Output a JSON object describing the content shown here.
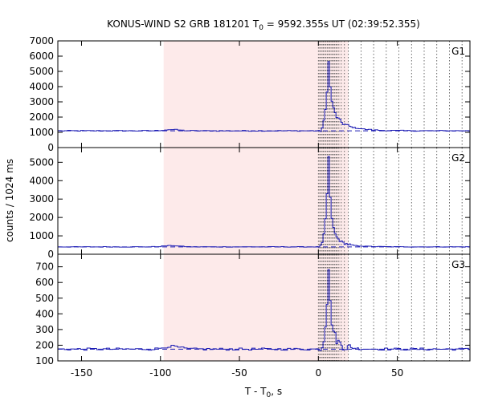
{
  "chart_data": {
    "type": "line",
    "title_main": "KONUS-WIND S2 GRB 181201 T",
    "title_sub": "0",
    "title_rest": " = 9592.355s UT (02:39:52.355)",
    "ylabel": "counts / 1024 ms",
    "xlabel_main": "T - T",
    "xlabel_sub": "0",
    "xlabel_rest": ", s",
    "xlim": [
      -165,
      96
    ],
    "xticks": [
      -150,
      -100,
      -50,
      0,
      50
    ],
    "shaded_region": [
      -98,
      19
    ],
    "vlines_dotted": [
      0,
      0.8,
      1.6,
      2.4,
      3.2,
      4.0,
      4.8,
      5.6,
      6.4,
      7.2,
      8.0,
      8.8,
      9.6,
      10.4,
      11.2,
      12.0,
      13.0,
      14.5,
      16.5,
      19.0,
      27,
      35,
      43,
      51,
      59,
      67,
      75,
      83,
      91
    ],
    "colors": {
      "data": "#1a1ab4",
      "background_fit": "#1a1ab4",
      "shade": "#fdeaea",
      "grid": "#444444"
    },
    "panels": [
      {
        "label": "G1",
        "ylim": [
          0,
          7000
        ],
        "yticks": [
          0,
          1000,
          2000,
          3000,
          4000,
          5000,
          6000,
          7000
        ],
        "background": 1100,
        "pre_bump": 80,
        "peak": 4550,
        "decay_fast": 1500,
        "tau_fast": 3.2,
        "decay_slow": 1000,
        "tau_slow": 10,
        "noise": 30
      },
      {
        "label": "G2",
        "ylim": [
          0,
          5800
        ],
        "yticks": [
          0,
          1000,
          2000,
          3000,
          4000,
          5000
        ],
        "background": 400,
        "pre_bump": 70,
        "peak": 4950,
        "decay_fast": 1200,
        "tau_fast": 3.2,
        "decay_slow": 450,
        "tau_slow": 9,
        "noise": 15
      },
      {
        "label": "G3",
        "ylim": [
          100,
          780
        ],
        "yticks": [
          100,
          200,
          300,
          400,
          500,
          600,
          700
        ],
        "background": 175,
        "pre_bump": 18,
        "peak": 525,
        "decay_fast": 180,
        "tau_fast": 3.5,
        "decay_slow": 25,
        "tau_slow": 9,
        "noise": 7
      }
    ]
  }
}
